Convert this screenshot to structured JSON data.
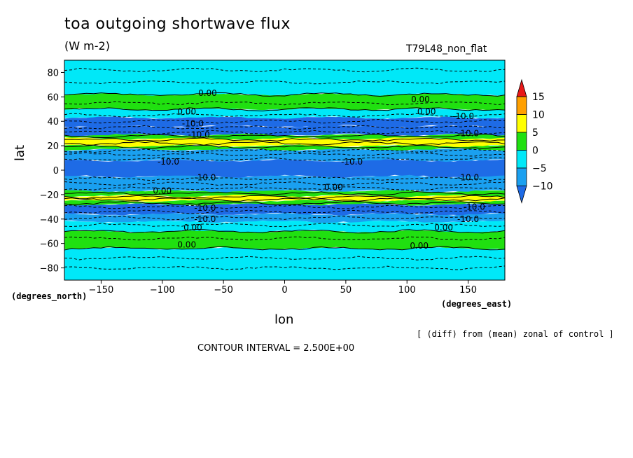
{
  "title": "toa outgoing shortwave flux",
  "units": "(W m-2)",
  "run_label": "T79L48_non_flat",
  "note": "[ (diff) from (mean) zonal of control ]",
  "contour_interval": "CONTOUR INTERVAL = 2.500E+00",
  "chart_data": {
    "type": "heatmap",
    "title": "toa outgoing shortwave flux",
    "xlabel": "lon",
    "ylabel": "lat",
    "xunit": "(degrees_east)",
    "yunit": "(degrees_north)",
    "xlim": [
      -180,
      180
    ],
    "ylim": [
      -90,
      90
    ],
    "xticks": [
      -150,
      -100,
      -50,
      0,
      50,
      100,
      150
    ],
    "yticks": [
      -80,
      -60,
      -40,
      -20,
      0,
      20,
      40,
      60,
      80
    ],
    "colorbar": {
      "levels": [
        -10,
        -5,
        0,
        5,
        10,
        15
      ],
      "colors": [
        "#1e6be6",
        "#1aa0f0",
        "#00e8f8",
        "#20e010",
        "#ffff00",
        "#ffa000",
        "#e81818"
      ]
    },
    "zonal_bands": [
      {
        "lat_range": [
          -90,
          -64
        ],
        "value_class": "-5 to 0",
        "color": "#00e8f8"
      },
      {
        "lat_range": [
          -64,
          -50
        ],
        "value_class": "0 to 5",
        "color": "#20e010"
      },
      {
        "lat_range": [
          -50,
          -42
        ],
        "value_class": "-5 to 0",
        "color": "#00e8f8"
      },
      {
        "lat_range": [
          -42,
          -36
        ],
        "value_class": "-10 to -5",
        "color": "#1aa0f0"
      },
      {
        "lat_range": [
          -36,
          -28
        ],
        "value_class": "< -10",
        "color": "#1e6be6"
      },
      {
        "lat_range": [
          -28,
          -25
        ],
        "value_class": "0 to 5",
        "color": "#20e010"
      },
      {
        "lat_range": [
          -25,
          -21
        ],
        "value_class": "5 to 10",
        "color": "#ffff00"
      },
      {
        "lat_range": [
          -21,
          -17
        ],
        "value_class": "0 to 5",
        "color": "#20e010"
      },
      {
        "lat_range": [
          -17,
          -5
        ],
        "value_class": "-10 to -5",
        "color": "#1aa0f0"
      },
      {
        "lat_range": [
          -5,
          8
        ],
        "value_class": "< -10",
        "color": "#1e6be6"
      },
      {
        "lat_range": [
          8,
          17
        ],
        "value_class": "-10 to -5",
        "color": "#1aa0f0"
      },
      {
        "lat_range": [
          17,
          20
        ],
        "value_class": "0 to 5",
        "color": "#20e010"
      },
      {
        "lat_range": [
          20,
          26
        ],
        "value_class": "5 to 10",
        "color": "#ffff00"
      },
      {
        "lat_range": [
          26,
          29
        ],
        "value_class": "0 to 5",
        "color": "#20e010"
      },
      {
        "lat_range": [
          29,
          36
        ],
        "value_class": "< -10",
        "color": "#1e6be6"
      },
      {
        "lat_range": [
          36,
          43
        ],
        "value_class": "< -10",
        "color": "#1e6be6"
      },
      {
        "lat_range": [
          43,
          50
        ],
        "value_class": "-5 to 0",
        "color": "#00e8f8"
      },
      {
        "lat_range": [
          50,
          62
        ],
        "value_class": "0 to 5",
        "color": "#20e010"
      },
      {
        "lat_range": [
          62,
          90
        ],
        "value_class": "-5 to 0",
        "color": "#00e8f8"
      }
    ],
    "contour_labels": [
      {
        "text": "0.00",
        "lon": -63,
        "lat": 63
      },
      {
        "text": "0.00",
        "lon": 111,
        "lat": 58
      },
      {
        "text": "0.00",
        "lon": 116,
        "lat": 48
      },
      {
        "text": "0.00",
        "lon": -80,
        "lat": 48
      },
      {
        "text": "-10.0",
        "lon": 146,
        "lat": 44
      },
      {
        "text": "-10.0",
        "lon": -75,
        "lat": 38
      },
      {
        "text": "-10.0",
        "lon": -70,
        "lat": 29
      },
      {
        "text": "-10.0",
        "lon": 150,
        "lat": 30
      },
      {
        "text": "-10.0",
        "lon": -95,
        "lat": 7
      },
      {
        "text": "-10.0",
        "lon": 55,
        "lat": 7
      },
      {
        "text": "-10.0",
        "lon": -65,
        "lat": -6
      },
      {
        "text": "-10.0",
        "lon": 150,
        "lat": -6
      },
      {
        "text": "0.00",
        "lon": -100,
        "lat": -17
      },
      {
        "text": "0.00",
        "lon": 40,
        "lat": -14
      },
      {
        "text": "-10.0",
        "lon": 155,
        "lat": -30
      },
      {
        "text": "-10.0",
        "lon": -65,
        "lat": -31
      },
      {
        "text": "-10.0",
        "lon": -65,
        "lat": -40
      },
      {
        "text": "-10.0",
        "lon": 150,
        "lat": -40
      },
      {
        "text": "0.00",
        "lon": -75,
        "lat": -47
      },
      {
        "text": "0.00",
        "lon": 130,
        "lat": -47
      },
      {
        "text": "0.00",
        "lon": -80,
        "lat": -61
      },
      {
        "text": "0.00",
        "lon": 110,
        "lat": -62
      }
    ]
  }
}
